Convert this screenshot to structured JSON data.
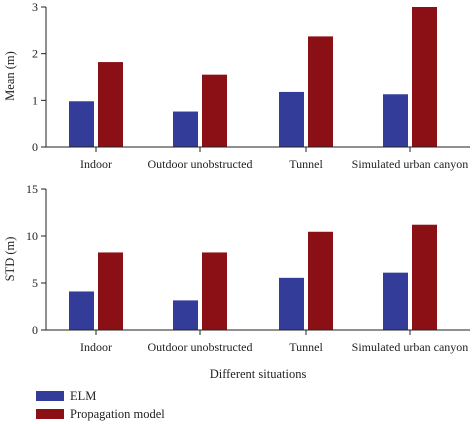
{
  "colors": {
    "elm": "#333c99",
    "propagation": "#8b1016"
  },
  "legend": {
    "placement": "bottom-left",
    "items": [
      {
        "label": "ELM",
        "color": "#333c99"
      },
      {
        "label": "Propagation model",
        "color": "#8b1016"
      }
    ]
  },
  "shared_xlabel": "Different situations",
  "chart_data": [
    {
      "type": "bar",
      "ylabel": "Mean (m)",
      "xlabel": "",
      "ylim": [
        0,
        3
      ],
      "yticks": [
        "0",
        "1",
        "2",
        "3"
      ],
      "categories": [
        "Indoor",
        "Outdoor unobstructed",
        "Tunnel",
        "Simulated urban canyon"
      ],
      "series": [
        {
          "name": "ELM",
          "color": "#333c99",
          "values": [
            0.98,
            0.76,
            1.18,
            1.13
          ]
        },
        {
          "name": "Propagation model",
          "color": "#8b1016",
          "values": [
            1.82,
            1.55,
            2.37,
            3.0
          ]
        }
      ]
    },
    {
      "type": "bar",
      "ylabel": "STD (m)",
      "xlabel": "Different situations",
      "ylim": [
        0,
        15
      ],
      "yticks": [
        "0",
        "5",
        "10",
        "15"
      ],
      "categories": [
        "Indoor",
        "Outdoor unobstructed",
        "Tunnel",
        "Simulated urban canyon"
      ],
      "series": [
        {
          "name": "ELM",
          "color": "#333c99",
          "values": [
            4.1,
            3.15,
            5.55,
            6.1
          ]
        },
        {
          "name": "Propagation model",
          "color": "#8b1016",
          "values": [
            8.25,
            8.25,
            10.45,
            11.2
          ]
        }
      ]
    }
  ]
}
